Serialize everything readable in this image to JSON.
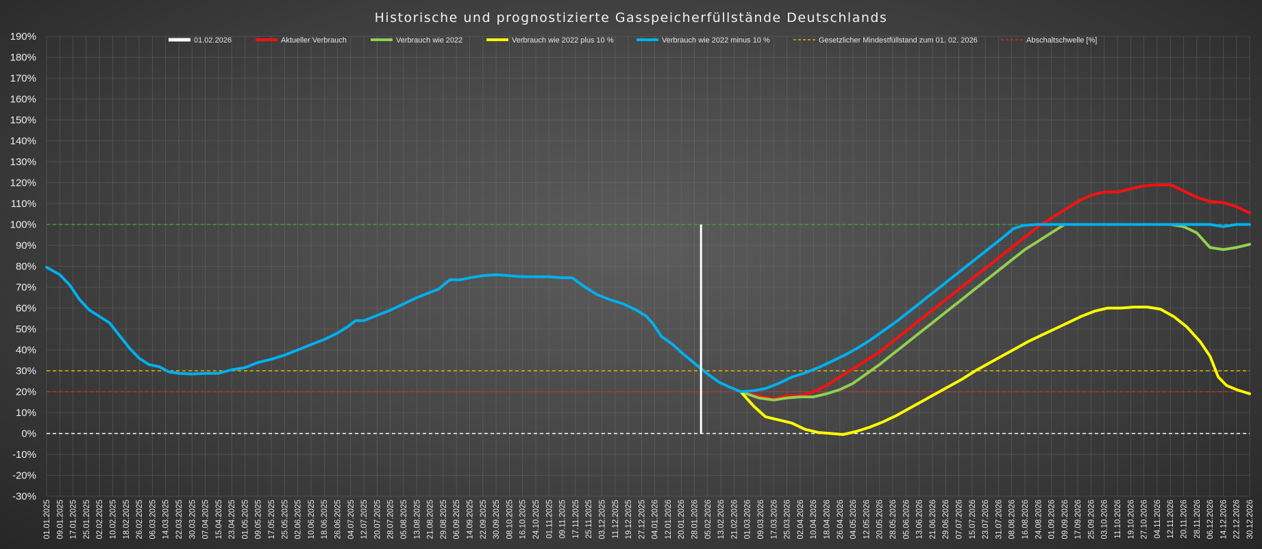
{
  "chart_data": {
    "type": "line",
    "title": "Historische und prognostizierte Gasspeicherfüllstände Deutschlands",
    "xlabel": "",
    "ylabel": "",
    "ylim": [
      -30,
      190
    ],
    "ytick_step": 10,
    "grid": true,
    "legend_position": "top",
    "x_start": "2025-01-01",
    "x_end": "2026-12-30",
    "x_ticks": [
      "01.01.2025",
      "09.01.2025",
      "17.01.2025",
      "25.01.2025",
      "02.02.2025",
      "10.02.2025",
      "18.02.2025",
      "26.02.2025",
      "06.03.2025",
      "14.03.2025",
      "22.03.2025",
      "30.03.2025",
      "07.04.2025",
      "15.04.2025",
      "23.04.2025",
      "01.05.2025",
      "09.05.2025",
      "17.05.2025",
      "25.05.2025",
      "02.06.2025",
      "10.06.2025",
      "18.06.2025",
      "26.06.2025",
      "04.07.2025",
      "12.07.2025",
      "20.07.2025",
      "28.07.2025",
      "05.08.2025",
      "13.08.2025",
      "21.08.2025",
      "29.08.2025",
      "06.09.2025",
      "14.09.2025",
      "22.09.2025",
      "30.09.2025",
      "08.10.2025",
      "16.10.2025",
      "24.10.2025",
      "01.11.2025",
      "09.11.2025",
      "17.11.2025",
      "25.11.2025",
      "03.12.2025",
      "11.12.2025",
      "19.12.2025",
      "27.12.2025",
      "04.01.2026",
      "12.01.2026",
      "20.01.2026",
      "28.01.2026",
      "05.02.2026",
      "13.02.2026",
      "21.02.2026",
      "01.03.2026",
      "09.03.2026",
      "17.03.2026",
      "25.03.2026",
      "02.04.2026",
      "10.04.2026",
      "18.04.2026",
      "26.04.2026",
      "04.05.2026",
      "12.05.2026",
      "20.05.2026",
      "28.05.2026",
      "05.06.2026",
      "13.06.2026",
      "21.06.2026",
      "29.06.2026",
      "07.07.2026",
      "15.07.2026",
      "23.07.2026",
      "31.07.2026",
      "08.08.2026",
      "16.08.2026",
      "24.08.2026",
      "01.09.2026",
      "09.09.2026",
      "17.09.2026",
      "25.09.2026",
      "03.10.2026",
      "11.10.2026",
      "19.10.2026",
      "27.10.2026",
      "04.11.2026",
      "12.11.2026",
      "20.11.2026",
      "28.11.2026",
      "06.12.2026",
      "14.12.2026",
      "22.12.2026",
      "30.12.2026"
    ],
    "vertical_marker": {
      "name": "01.02.2026",
      "x": "2026-02-01",
      "ymin": 0,
      "ymax": 100,
      "color": "#ffffff"
    },
    "reference_lines": [
      {
        "name": "Gesetzlicher Mindestfüllstand zum 01. 02. 2026",
        "y": 30,
        "color": "#e6b800"
      },
      {
        "name": "Abschaltschwelle [%]",
        "y": 20,
        "color": "#d42a2a"
      },
      {
        "name": "",
        "y": 100,
        "color": "#3aa53a"
      },
      {
        "name": "",
        "y": 0,
        "color": "#ffffff"
      }
    ],
    "series": [
      {
        "name": "Aktueller Verbrauch",
        "color": "#ff1010",
        "points": [
          [
            "2026-02-25",
            20
          ],
          [
            "2026-03-08",
            18
          ],
          [
            "2026-03-17",
            16.5
          ],
          [
            "2026-03-25",
            18
          ],
          [
            "2026-04-02",
            18
          ],
          [
            "2026-04-10",
            20
          ],
          [
            "2026-04-18",
            23
          ],
          [
            "2026-04-26",
            27
          ],
          [
            "2026-05-04",
            31
          ],
          [
            "2026-05-12",
            35
          ],
          [
            "2026-05-20",
            39
          ],
          [
            "2026-05-28",
            44
          ],
          [
            "2026-06-05",
            49
          ],
          [
            "2026-06-13",
            54
          ],
          [
            "2026-06-21",
            59
          ],
          [
            "2026-06-29",
            64
          ],
          [
            "2026-07-07",
            69
          ],
          [
            "2026-07-15",
            74
          ],
          [
            "2026-07-23",
            79
          ],
          [
            "2026-07-31",
            84
          ],
          [
            "2026-08-08",
            89
          ],
          [
            "2026-08-16",
            94
          ],
          [
            "2026-08-24",
            99
          ],
          [
            "2026-09-01",
            103
          ],
          [
            "2026-09-09",
            107
          ],
          [
            "2026-09-17",
            111
          ],
          [
            "2026-09-25",
            114
          ],
          [
            "2026-10-03",
            115.5
          ],
          [
            "2026-10-11",
            115.5
          ],
          [
            "2026-10-19",
            117
          ],
          [
            "2026-10-27",
            118.5
          ],
          [
            "2026-11-04",
            119
          ],
          [
            "2026-11-12",
            119
          ],
          [
            "2026-11-20",
            116
          ],
          [
            "2026-11-28",
            113
          ],
          [
            "2026-12-06",
            111
          ],
          [
            "2026-12-14",
            110.5
          ],
          [
            "2026-12-22",
            108.5
          ],
          [
            "2026-12-30",
            105.5
          ]
        ]
      },
      {
        "name": "Verbrauch wie 2022",
        "color": "#92d050",
        "points": [
          [
            "2026-02-25",
            20
          ],
          [
            "2026-03-08",
            17
          ],
          [
            "2026-03-17",
            16
          ],
          [
            "2026-03-25",
            17
          ],
          [
            "2026-04-02",
            17.5
          ],
          [
            "2026-04-10",
            17.5
          ],
          [
            "2026-04-18",
            19
          ],
          [
            "2026-04-26",
            21
          ],
          [
            "2026-05-04",
            24
          ],
          [
            "2026-05-12",
            28.5
          ],
          [
            "2026-05-20",
            33
          ],
          [
            "2026-05-28",
            38
          ],
          [
            "2026-06-05",
            43
          ],
          [
            "2026-06-13",
            48
          ],
          [
            "2026-06-21",
            53
          ],
          [
            "2026-06-29",
            58
          ],
          [
            "2026-07-07",
            63
          ],
          [
            "2026-07-15",
            68
          ],
          [
            "2026-07-23",
            73
          ],
          [
            "2026-07-31",
            78
          ],
          [
            "2026-08-08",
            83
          ],
          [
            "2026-08-16",
            88
          ],
          [
            "2026-08-24",
            92
          ],
          [
            "2026-09-01",
            96
          ],
          [
            "2026-09-09",
            100
          ],
          [
            "2026-09-17",
            100
          ],
          [
            "2026-11-12",
            100
          ],
          [
            "2026-11-20",
            99
          ],
          [
            "2026-11-28",
            96
          ],
          [
            "2026-12-06",
            89
          ],
          [
            "2026-12-14",
            88
          ],
          [
            "2026-12-22",
            89
          ],
          [
            "2026-12-30",
            90.5
          ]
        ]
      },
      {
        "name": "Verbrauch wie 2022 plus 10 %",
        "color": "#ffff00",
        "points": [
          [
            "2026-02-25",
            20
          ],
          [
            "2026-03-05",
            13
          ],
          [
            "2026-03-12",
            8
          ],
          [
            "2026-03-20",
            6.5
          ],
          [
            "2026-03-28",
            5
          ],
          [
            "2026-04-05",
            2
          ],
          [
            "2026-04-13",
            0.5
          ],
          [
            "2026-04-21",
            0
          ],
          [
            "2026-04-28",
            -0.5
          ],
          [
            "2026-05-06",
            1
          ],
          [
            "2026-05-14",
            3
          ],
          [
            "2026-05-22",
            5.5
          ],
          [
            "2026-05-30",
            8.5
          ],
          [
            "2026-06-07",
            12
          ],
          [
            "2026-06-15",
            15.5
          ],
          [
            "2026-06-23",
            19
          ],
          [
            "2026-07-01",
            22.5
          ],
          [
            "2026-07-09",
            26
          ],
          [
            "2026-07-17",
            30
          ],
          [
            "2026-07-25",
            33.5
          ],
          [
            "2026-08-02",
            37
          ],
          [
            "2026-08-10",
            40.5
          ],
          [
            "2026-08-18",
            44
          ],
          [
            "2026-08-26",
            47
          ],
          [
            "2026-09-03",
            50
          ],
          [
            "2026-09-11",
            53
          ],
          [
            "2026-09-19",
            56
          ],
          [
            "2026-09-27",
            58.5
          ],
          [
            "2026-10-05",
            60
          ],
          [
            "2026-10-13",
            60
          ],
          [
            "2026-10-21",
            60.5
          ],
          [
            "2026-10-29",
            60.5
          ],
          [
            "2026-11-06",
            59.5
          ],
          [
            "2026-11-14",
            56
          ],
          [
            "2026-11-22",
            51
          ],
          [
            "2026-11-30",
            44
          ],
          [
            "2026-12-06",
            37
          ],
          [
            "2026-12-11",
            27
          ],
          [
            "2026-12-16",
            23
          ],
          [
            "2026-12-22",
            21
          ],
          [
            "2026-12-30",
            19
          ]
        ]
      },
      {
        "name": "Verbrauch wie 2022 minus 10 %",
        "color": "#00b0f0",
        "points": [
          [
            "2025-01-01",
            79.5
          ],
          [
            "2025-01-09",
            76
          ],
          [
            "2025-01-15",
            71
          ],
          [
            "2025-01-21",
            64
          ],
          [
            "2025-01-27",
            59
          ],
          [
            "2025-02-02",
            56
          ],
          [
            "2025-02-08",
            53
          ],
          [
            "2025-02-14",
            47
          ],
          [
            "2025-02-20",
            41
          ],
          [
            "2025-02-26",
            36
          ],
          [
            "2025-03-04",
            33
          ],
          [
            "2025-03-10",
            32
          ],
          [
            "2025-03-16",
            29.5
          ],
          [
            "2025-03-22",
            28.8
          ],
          [
            "2025-03-30",
            28.5
          ],
          [
            "2025-04-07",
            28.8
          ],
          [
            "2025-04-15",
            28.8
          ],
          [
            "2025-04-23",
            30.5
          ],
          [
            "2025-05-01",
            31.5
          ],
          [
            "2025-05-09",
            34
          ],
          [
            "2025-05-17",
            35.5
          ],
          [
            "2025-05-25",
            37.5
          ],
          [
            "2025-06-02",
            40
          ],
          [
            "2025-06-10",
            42.5
          ],
          [
            "2025-06-18",
            45
          ],
          [
            "2025-06-26",
            48
          ],
          [
            "2025-07-02",
            51
          ],
          [
            "2025-07-07",
            54
          ],
          [
            "2025-07-12",
            54
          ],
          [
            "2025-07-20",
            56.5
          ],
          [
            "2025-07-28",
            59
          ],
          [
            "2025-08-05",
            62
          ],
          [
            "2025-08-13",
            65
          ],
          [
            "2025-08-21",
            67.5
          ],
          [
            "2025-08-26",
            69
          ],
          [
            "2025-09-02",
            73.5
          ],
          [
            "2025-09-08",
            73.5
          ],
          [
            "2025-09-14",
            74.5
          ],
          [
            "2025-09-22",
            75.5
          ],
          [
            "2025-09-30",
            76
          ],
          [
            "2025-10-08",
            75.5
          ],
          [
            "2025-10-16",
            75
          ],
          [
            "2025-10-24",
            75
          ],
          [
            "2025-11-01",
            75
          ],
          [
            "2025-11-09",
            74.5
          ],
          [
            "2025-11-15",
            74.5
          ],
          [
            "2025-11-22",
            70.5
          ],
          [
            "2025-11-30",
            66.5
          ],
          [
            "2025-12-08",
            64
          ],
          [
            "2025-12-16",
            62
          ],
          [
            "2025-12-24",
            59
          ],
          [
            "2025-12-30",
            56
          ],
          [
            "2026-01-03",
            52.5
          ],
          [
            "2026-01-08",
            46.5
          ],
          [
            "2026-01-15",
            42.5
          ],
          [
            "2026-01-22",
            37.5
          ],
          [
            "2026-01-29",
            33
          ],
          [
            "2026-02-05",
            28.5
          ],
          [
            "2026-02-12",
            24.5
          ],
          [
            "2026-02-19",
            22
          ],
          [
            "2026-02-25",
            20
          ],
          [
            "2026-03-05",
            20.5
          ],
          [
            "2026-03-12",
            21.5
          ],
          [
            "2026-03-20",
            24
          ],
          [
            "2026-03-28",
            27
          ],
          [
            "2026-04-05",
            29
          ],
          [
            "2026-04-13",
            31.5
          ],
          [
            "2026-04-21",
            34.5
          ],
          [
            "2026-04-29",
            37.5
          ],
          [
            "2026-05-07",
            41
          ],
          [
            "2026-05-15",
            45
          ],
          [
            "2026-05-23",
            49.5
          ],
          [
            "2026-05-31",
            54
          ],
          [
            "2026-06-08",
            59
          ],
          [
            "2026-06-16",
            64
          ],
          [
            "2026-06-24",
            69
          ],
          [
            "2026-07-02",
            74
          ],
          [
            "2026-07-10",
            79
          ],
          [
            "2026-07-18",
            84
          ],
          [
            "2026-07-26",
            89
          ],
          [
            "2026-08-03",
            94
          ],
          [
            "2026-08-09",
            98
          ],
          [
            "2026-08-15",
            99.5
          ],
          [
            "2026-08-23",
            100
          ],
          [
            "2026-12-06",
            100
          ],
          [
            "2026-12-14",
            99
          ],
          [
            "2026-12-22",
            100
          ],
          [
            "2026-12-30",
            100
          ]
        ]
      }
    ]
  }
}
